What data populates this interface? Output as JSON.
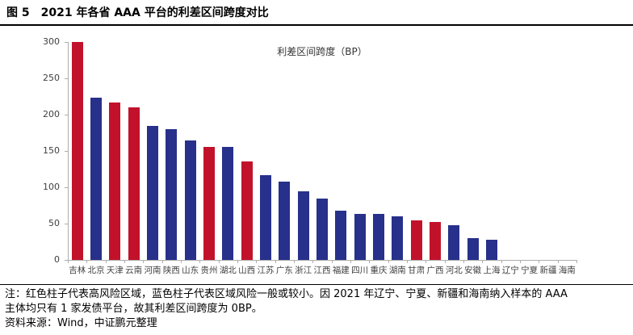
{
  "figure": {
    "label": "图 5",
    "title": "2021 年各省 AAA 平台的利差区间跨度对比"
  },
  "chart_data": {
    "type": "bar",
    "title": "利差区间跨度（BP）",
    "legend_position": "top-center",
    "grid": false,
    "xlabel": "",
    "ylabel": "",
    "ylim": [
      0,
      300
    ],
    "yticks": [
      0,
      50,
      100,
      150,
      200,
      250,
      300
    ],
    "categories": [
      "吉林",
      "北京",
      "天津",
      "云南",
      "河南",
      "陕西",
      "山东",
      "贵州",
      "湖北",
      "山西",
      "江苏",
      "广东",
      "浙江",
      "江西",
      "福建",
      "四川",
      "重庆",
      "湖南",
      "甘肃",
      "广西",
      "河北",
      "安徽",
      "上海",
      "辽宁",
      "宁夏",
      "新疆",
      "海南"
    ],
    "values": [
      300,
      223,
      217,
      210,
      184,
      180,
      165,
      156,
      156,
      136,
      117,
      108,
      94,
      85,
      68,
      63,
      63,
      60,
      54,
      52,
      48,
      30,
      28,
      0,
      0,
      0,
      0
    ],
    "risk": [
      "high",
      "low",
      "high",
      "high",
      "low",
      "low",
      "low",
      "high",
      "low",
      "high",
      "low",
      "low",
      "low",
      "low",
      "low",
      "low",
      "low",
      "low",
      "high",
      "high",
      "low",
      "low",
      "low",
      "low",
      "low",
      "low",
      "low"
    ],
    "high_risk_color": "#C2122B",
    "low_risk_color": "#27308A",
    "axis_color": "#ADADAD"
  },
  "note": {
    "line1": "注：红色柱子代表高风险区域，蓝色柱子代表区域风险一般或较小。因 2021 年辽宁、宁夏、新疆和海南纳入样本的 AAA",
    "line2": "主体均只有 1 家发债平台，故其利差区间跨度为 0BP。",
    "source": "资料来源：Wind，中证鹏元整理"
  }
}
